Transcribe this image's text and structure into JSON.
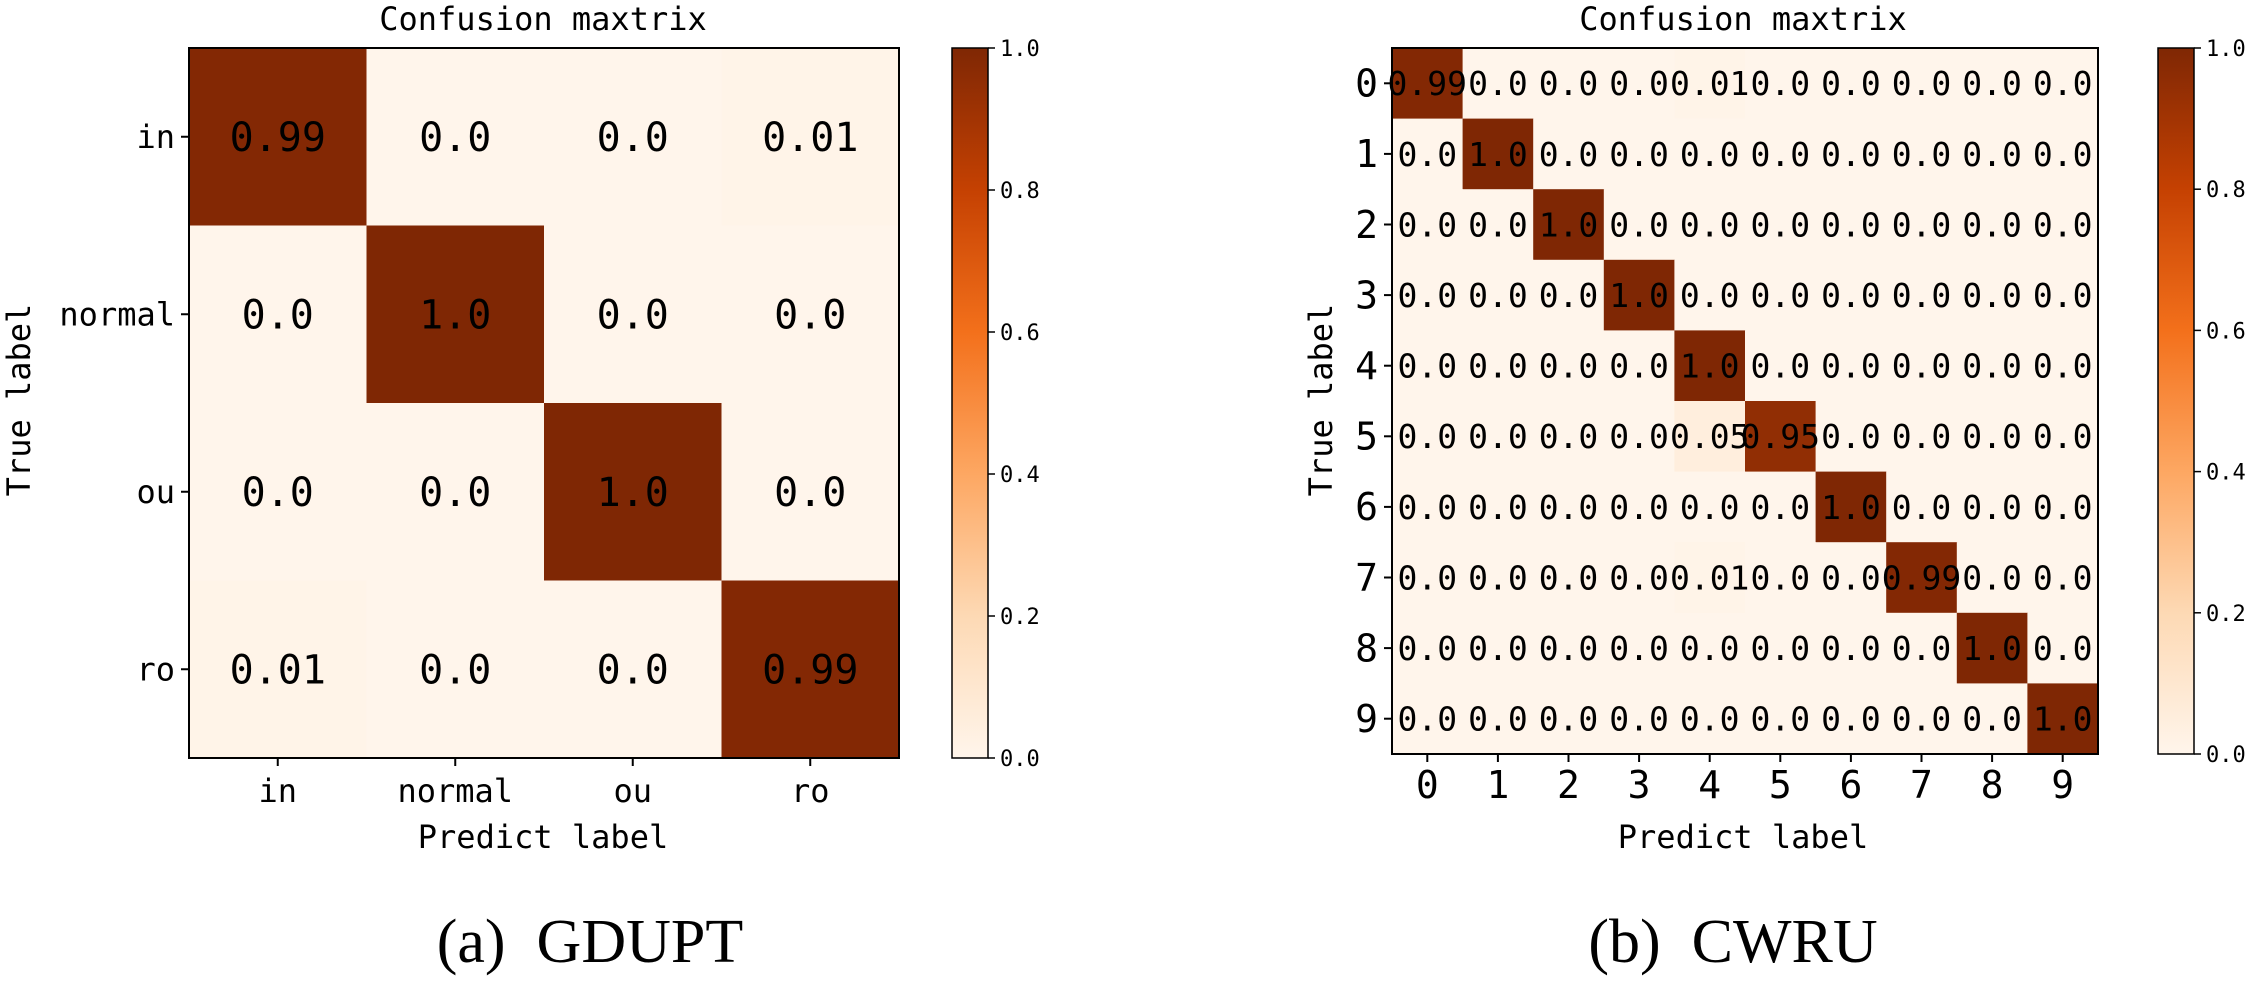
{
  "colormap": [
    "#fff5eb",
    "#fdd9b4",
    "#fda762",
    "#f3701b",
    "#c54102",
    "#7f2704"
  ],
  "chart_data": [
    {
      "type": "heatmap",
      "title": "Confusion maxtrix",
      "xlabel": "Predict label",
      "ylabel": "True label",
      "x_categories": [
        "in",
        "normal",
        "ou",
        "ro"
      ],
      "y_categories": [
        "in",
        "normal",
        "ou",
        "ro"
      ],
      "matrix": [
        [
          0.99,
          0.0,
          0.0,
          0.01
        ],
        [
          0.0,
          1.0,
          0.0,
          0.0
        ],
        [
          0.0,
          0.0,
          1.0,
          0.0
        ],
        [
          0.01,
          0.0,
          0.0,
          0.99
        ]
      ],
      "cell_labels": [
        [
          "0.99",
          "0.0",
          "0.0",
          "0.01"
        ],
        [
          "0.0",
          "1.0",
          "0.0",
          "0.0"
        ],
        [
          "0.0",
          "0.0",
          "1.0",
          "0.0"
        ],
        [
          "0.01",
          "0.0",
          "0.0",
          "0.99"
        ]
      ],
      "colorbar": {
        "min": 0.0,
        "max": 1.0,
        "ticks": [
          "0.0",
          "0.2",
          "0.4",
          "0.6",
          "0.8",
          "1.0"
        ]
      },
      "caption": "(a)  GDUPT"
    },
    {
      "type": "heatmap",
      "title": "Confusion maxtrix",
      "xlabel": "Predict label",
      "ylabel": "True label",
      "x_categories": [
        "0",
        "1",
        "2",
        "3",
        "4",
        "5",
        "6",
        "7",
        "8",
        "9"
      ],
      "y_categories": [
        "0",
        "1",
        "2",
        "3",
        "4",
        "5",
        "6",
        "7",
        "8",
        "9"
      ],
      "matrix": [
        [
          0.99,
          0.0,
          0.0,
          0.0,
          0.01,
          0.0,
          0.0,
          0.0,
          0.0,
          0.0
        ],
        [
          0.0,
          1.0,
          0.0,
          0.0,
          0.0,
          0.0,
          0.0,
          0.0,
          0.0,
          0.0
        ],
        [
          0.0,
          0.0,
          1.0,
          0.0,
          0.0,
          0.0,
          0.0,
          0.0,
          0.0,
          0.0
        ],
        [
          0.0,
          0.0,
          0.0,
          1.0,
          0.0,
          0.0,
          0.0,
          0.0,
          0.0,
          0.0
        ],
        [
          0.0,
          0.0,
          0.0,
          0.0,
          1.0,
          0.0,
          0.0,
          0.0,
          0.0,
          0.0
        ],
        [
          0.0,
          0.0,
          0.0,
          0.0,
          0.05,
          0.95,
          0.0,
          0.0,
          0.0,
          0.0
        ],
        [
          0.0,
          0.0,
          0.0,
          0.0,
          0.0,
          0.0,
          1.0,
          0.0,
          0.0,
          0.0
        ],
        [
          0.0,
          0.0,
          0.0,
          0.0,
          0.01,
          0.0,
          0.0,
          0.99,
          0.0,
          0.0
        ],
        [
          0.0,
          0.0,
          0.0,
          0.0,
          0.0,
          0.0,
          0.0,
          0.0,
          1.0,
          0.0
        ],
        [
          0.0,
          0.0,
          0.0,
          0.0,
          0.0,
          0.0,
          0.0,
          0.0,
          0.0,
          1.0
        ]
      ],
      "cell_labels": [
        [
          "0.99",
          "0.0",
          "0.0",
          "0.0",
          "0.01",
          "0.0",
          "0.0",
          "0.0",
          "0.0",
          "0.0"
        ],
        [
          "0.0",
          "1.0",
          "0.0",
          "0.0",
          "0.0",
          "0.0",
          "0.0",
          "0.0",
          "0.0",
          "0.0"
        ],
        [
          "0.0",
          "0.0",
          "1.0",
          "0.0",
          "0.0",
          "0.0",
          "0.0",
          "0.0",
          "0.0",
          "0.0"
        ],
        [
          "0.0",
          "0.0",
          "0.0",
          "1.0",
          "0.0",
          "0.0",
          "0.0",
          "0.0",
          "0.0",
          "0.0"
        ],
        [
          "0.0",
          "0.0",
          "0.0",
          "0.0",
          "1.0",
          "0.0",
          "0.0",
          "0.0",
          "0.0",
          "0.0"
        ],
        [
          "0.0",
          "0.0",
          "0.0",
          "0.0",
          "0.05",
          "0.95",
          "0.0",
          "0.0",
          "0.0",
          "0.0"
        ],
        [
          "0.0",
          "0.0",
          "0.0",
          "0.0",
          "0.0",
          "0.0",
          "1.0",
          "0.0",
          "0.0",
          "0.0"
        ],
        [
          "0.0",
          "0.0",
          "0.0",
          "0.0",
          "0.01",
          "0.0",
          "0.0",
          "0.99",
          "0.0",
          "0.0"
        ],
        [
          "0.0",
          "0.0",
          "0.0",
          "0.0",
          "0.0",
          "0.0",
          "0.0",
          "0.0",
          "1.0",
          "0.0"
        ],
        [
          "0.0",
          "0.0",
          "0.0",
          "0.0",
          "0.0",
          "0.0",
          "0.0",
          "0.0",
          "0.0",
          "1.0"
        ]
      ],
      "colorbar": {
        "min": 0.0,
        "max": 1.0,
        "ticks": [
          "0.0",
          "0.2",
          "0.4",
          "0.6",
          "0.8",
          "1.0"
        ]
      },
      "caption": "(b)  CWRU"
    }
  ]
}
